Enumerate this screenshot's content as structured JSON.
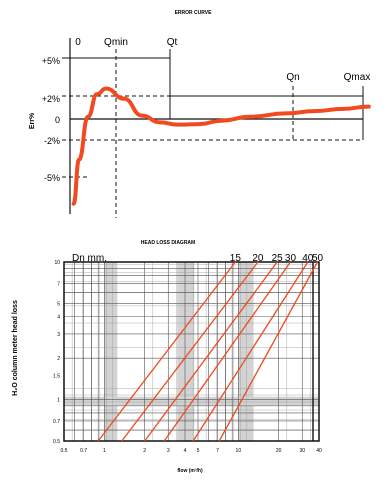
{
  "chart_data": [
    {
      "type": "line",
      "title": "ERROR CURVE",
      "ylabel": "Err%",
      "x_markers": [
        "0",
        "Qmin",
        "Qt",
        "Qn",
        "Qmax"
      ],
      "y_ticks": [
        "+5%",
        "+2%",
        "0",
        "-2%",
        "-5%"
      ],
      "ylim": [
        -8,
        5
      ],
      "grid": "dashed reference lines at Qmin, Qt, Qn, +2%, -2%",
      "curve_color": "#f04a1e",
      "series": [
        {
          "x": [
            0.1,
            0.25,
            0.5,
            0.75,
            1.0,
            1.5,
            2.0,
            2.5,
            3.0,
            3.6,
            4.2,
            5.0,
            6.0,
            6.8,
            7.6,
            8.3
          ],
          "values": [
            -7.5,
            -3.6,
            0.2,
            2.2,
            2.7,
            1.8,
            0.3,
            -0.3,
            -0.5,
            -0.45,
            -0.15,
            0.2,
            0.5,
            0.7,
            0.9,
            1.1
          ]
        }
      ]
    },
    {
      "type": "line",
      "title": "HEAD LOSS DIAGRAM",
      "xlabel": "flow (m³/h)",
      "ylabel": "H₂O column meter head loss",
      "x_scale": "log",
      "y_scale": "log",
      "xlim": [
        0.5,
        40
      ],
      "ylim": [
        0.5,
        10
      ],
      "x_ticks": [
        "0.5",
        "0.7",
        "1",
        "2",
        "3",
        "4",
        "5",
        "7",
        "10",
        "20",
        "30",
        "40"
      ],
      "y_ticks": [
        "10",
        "7",
        "5",
        "4",
        "3",
        "2",
        "1.5",
        "1",
        "0.7",
        "0.5"
      ],
      "legend_caption": "Dn mm.",
      "line_color": "#f04a1e",
      "series": [
        {
          "name": "15",
          "x": [
            0.9,
            9.5
          ],
          "values": [
            0.5,
            10
          ]
        },
        {
          "name": "20",
          "x": [
            1.35,
            14
          ],
          "values": [
            0.5,
            10
          ]
        },
        {
          "name": "25",
          "x": [
            2.0,
            19.5
          ],
          "values": [
            0.5,
            10
          ]
        },
        {
          "name": "30",
          "x": [
            2.8,
            24.5
          ],
          "values": [
            0.5,
            10
          ]
        },
        {
          "name": "40",
          "x": [
            4.6,
            33
          ],
          "values": [
            0.5,
            10
          ]
        },
        {
          "name": "50",
          "x": [
            7.2,
            39
          ],
          "values": [
            0.5,
            10
          ]
        }
      ]
    }
  ]
}
